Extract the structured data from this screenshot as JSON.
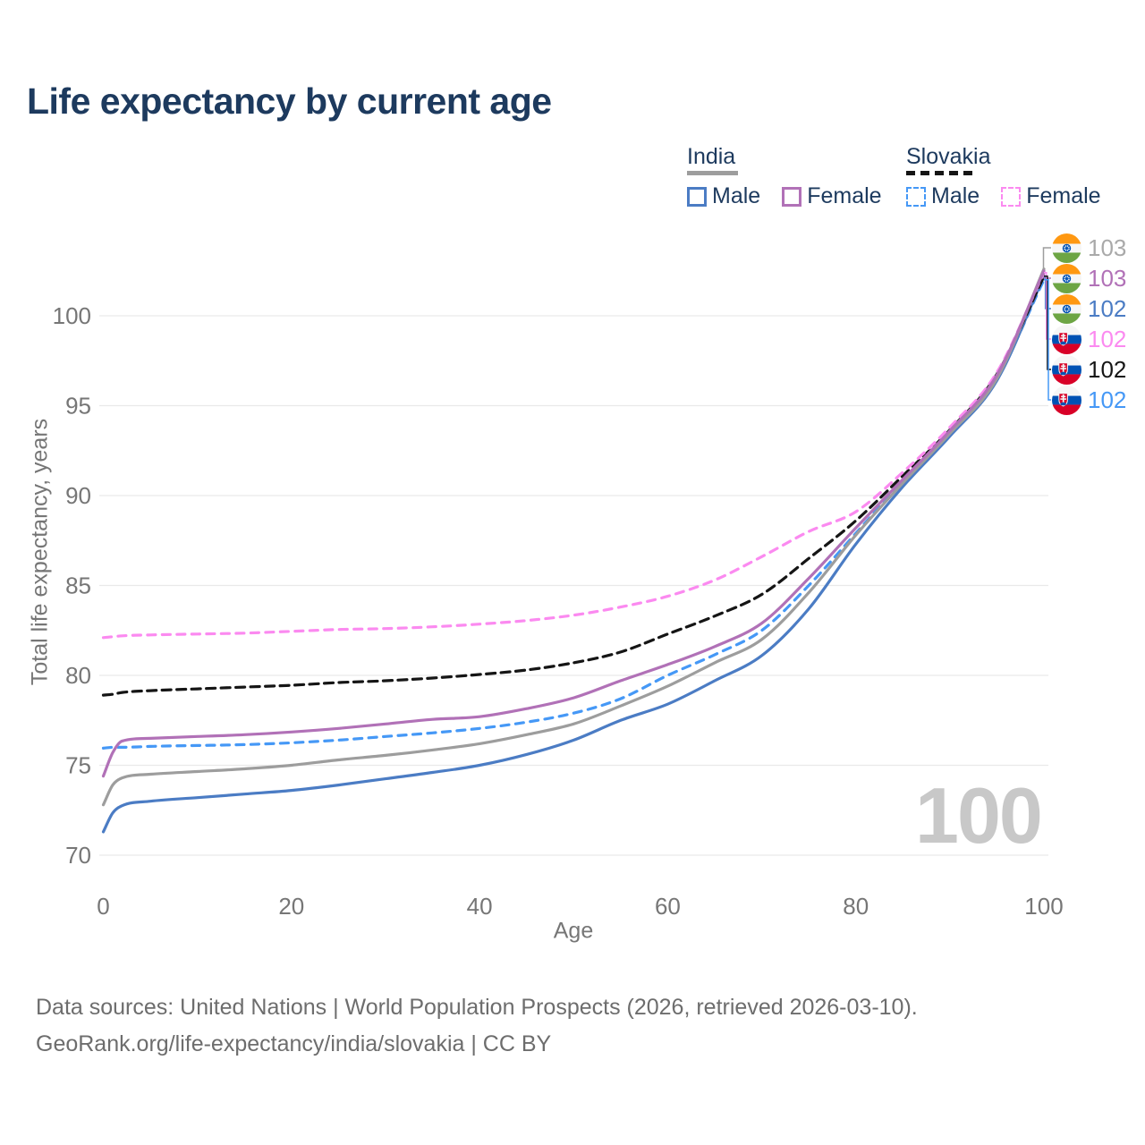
{
  "title": "Life expectancy by current age",
  "watermark": "100",
  "legend": {
    "groups": [
      {
        "country": "India",
        "line_style": "solid",
        "line_color": "#9d9d9d",
        "items": [
          {
            "label": "Male",
            "style": "solid",
            "color": "#4b7cc4"
          },
          {
            "label": "Female",
            "style": "solid",
            "color": "#b171b7"
          }
        ]
      },
      {
        "country": "Slovakia",
        "line_style": "dashed",
        "line_color": "#151515",
        "items": [
          {
            "label": "Male",
            "style": "dashed",
            "color": "#4598f6"
          },
          {
            "label": "Female",
            "style": "dashed",
            "color": "#fb8af0"
          }
        ]
      }
    ]
  },
  "end_labels": [
    {
      "series_id": "india_total",
      "flag": "india",
      "value": "103",
      "color": "#a9a9a9"
    },
    {
      "series_id": "india_female",
      "flag": "india",
      "value": "103",
      "color": "#b171b7"
    },
    {
      "series_id": "india_male",
      "flag": "india",
      "value": "102",
      "color": "#4b7cc4"
    },
    {
      "series_id": "slovakia_female",
      "flag": "slovakia",
      "value": "102",
      "color": "#fb8af0"
    },
    {
      "series_id": "slovakia_total",
      "flag": "slovakia",
      "value": "102",
      "color": "#151515"
    },
    {
      "series_id": "slovakia_male",
      "flag": "slovakia",
      "value": "102",
      "color": "#4598f6"
    }
  ],
  "footer": {
    "line1": "Data sources: United Nations | World Population Prospects (2026, retrieved 2026-03-10).",
    "line2": "GeoRank.org/life-expectancy/india/slovakia | CC BY"
  },
  "chart_data": {
    "type": "line",
    "title": "Life expectancy by current age",
    "xlabel": "Age",
    "ylabel": "Total life expectancy, years",
    "x_ticks": [
      0,
      20,
      40,
      60,
      80,
      100
    ],
    "y_ticks": [
      70,
      75,
      80,
      85,
      90,
      95,
      100
    ],
    "xlim": [
      0,
      100
    ],
    "ylim": [
      68.5,
      104.5
    ],
    "grid": "horizontal",
    "legend_position": "top-right",
    "x": [
      0,
      1,
      2,
      5,
      10,
      15,
      20,
      25,
      30,
      35,
      40,
      45,
      50,
      55,
      60,
      65,
      70,
      75,
      80,
      85,
      90,
      95,
      100
    ],
    "series": [
      {
        "id": "india_total",
        "name": "India Total",
        "color": "#9d9d9d",
        "dash": null,
        "label_index": 0,
        "end_value": "103",
        "values": [
          72.8,
          73.9,
          74.3,
          74.5,
          74.65,
          74.8,
          75.0,
          75.3,
          75.55,
          75.85,
          76.2,
          76.7,
          77.3,
          78.3,
          79.4,
          80.7,
          82.0,
          84.6,
          87.8,
          90.7,
          93.45,
          96.5,
          102.6
        ]
      },
      {
        "id": "india_female",
        "name": "India Female",
        "color": "#b171b7",
        "dash": null,
        "label_index": 1,
        "end_value": "103",
        "values": [
          74.4,
          75.7,
          76.35,
          76.5,
          76.6,
          76.7,
          76.85,
          77.05,
          77.3,
          77.55,
          77.7,
          78.15,
          78.75,
          79.7,
          80.6,
          81.6,
          82.9,
          85.4,
          88.2,
          90.9,
          93.6,
          96.7,
          102.5
        ]
      },
      {
        "id": "india_male",
        "name": "India Male",
        "color": "#4b7cc4",
        "dash": null,
        "label_index": 2,
        "end_value": "102",
        "values": [
          71.3,
          72.35,
          72.75,
          73.0,
          73.2,
          73.4,
          73.6,
          73.9,
          74.25,
          74.6,
          75.0,
          75.6,
          76.4,
          77.5,
          78.4,
          79.7,
          81.1,
          83.7,
          87.3,
          90.5,
          93.3,
          96.4,
          102.2
        ]
      },
      {
        "id": "slovakia_female",
        "name": "Slovakia Female",
        "color": "#fb8af0",
        "dash": "9 7.5",
        "label_index": 3,
        "end_value": "102",
        "values": [
          82.1,
          82.15,
          82.2,
          82.25,
          82.3,
          82.35,
          82.45,
          82.55,
          82.6,
          82.7,
          82.85,
          83.05,
          83.35,
          83.8,
          84.4,
          85.3,
          86.6,
          88.0,
          89.1,
          91.3,
          93.8,
          96.85,
          102.4
        ]
      },
      {
        "id": "slovakia_total",
        "name": "Slovakia Total",
        "color": "#151515",
        "dash": "10 6.5",
        "label_index": 4,
        "end_value": "102",
        "values": [
          78.9,
          78.95,
          79.05,
          79.15,
          79.25,
          79.35,
          79.45,
          79.6,
          79.7,
          79.85,
          80.05,
          80.3,
          80.7,
          81.3,
          82.3,
          83.3,
          84.5,
          86.5,
          88.6,
          91.1,
          93.65,
          96.75,
          102.2
        ]
      },
      {
        "id": "slovakia_male",
        "name": "Slovakia Male",
        "color": "#4598f6",
        "dash": "9 7.5",
        "label_index": 5,
        "end_value": "102",
        "values": [
          75.95,
          76.0,
          76.0,
          76.05,
          76.1,
          76.15,
          76.25,
          76.4,
          76.6,
          76.8,
          77.05,
          77.4,
          77.9,
          78.7,
          80.0,
          81.15,
          82.5,
          85.0,
          87.9,
          90.8,
          93.5,
          96.55,
          102.0
        ]
      }
    ]
  }
}
